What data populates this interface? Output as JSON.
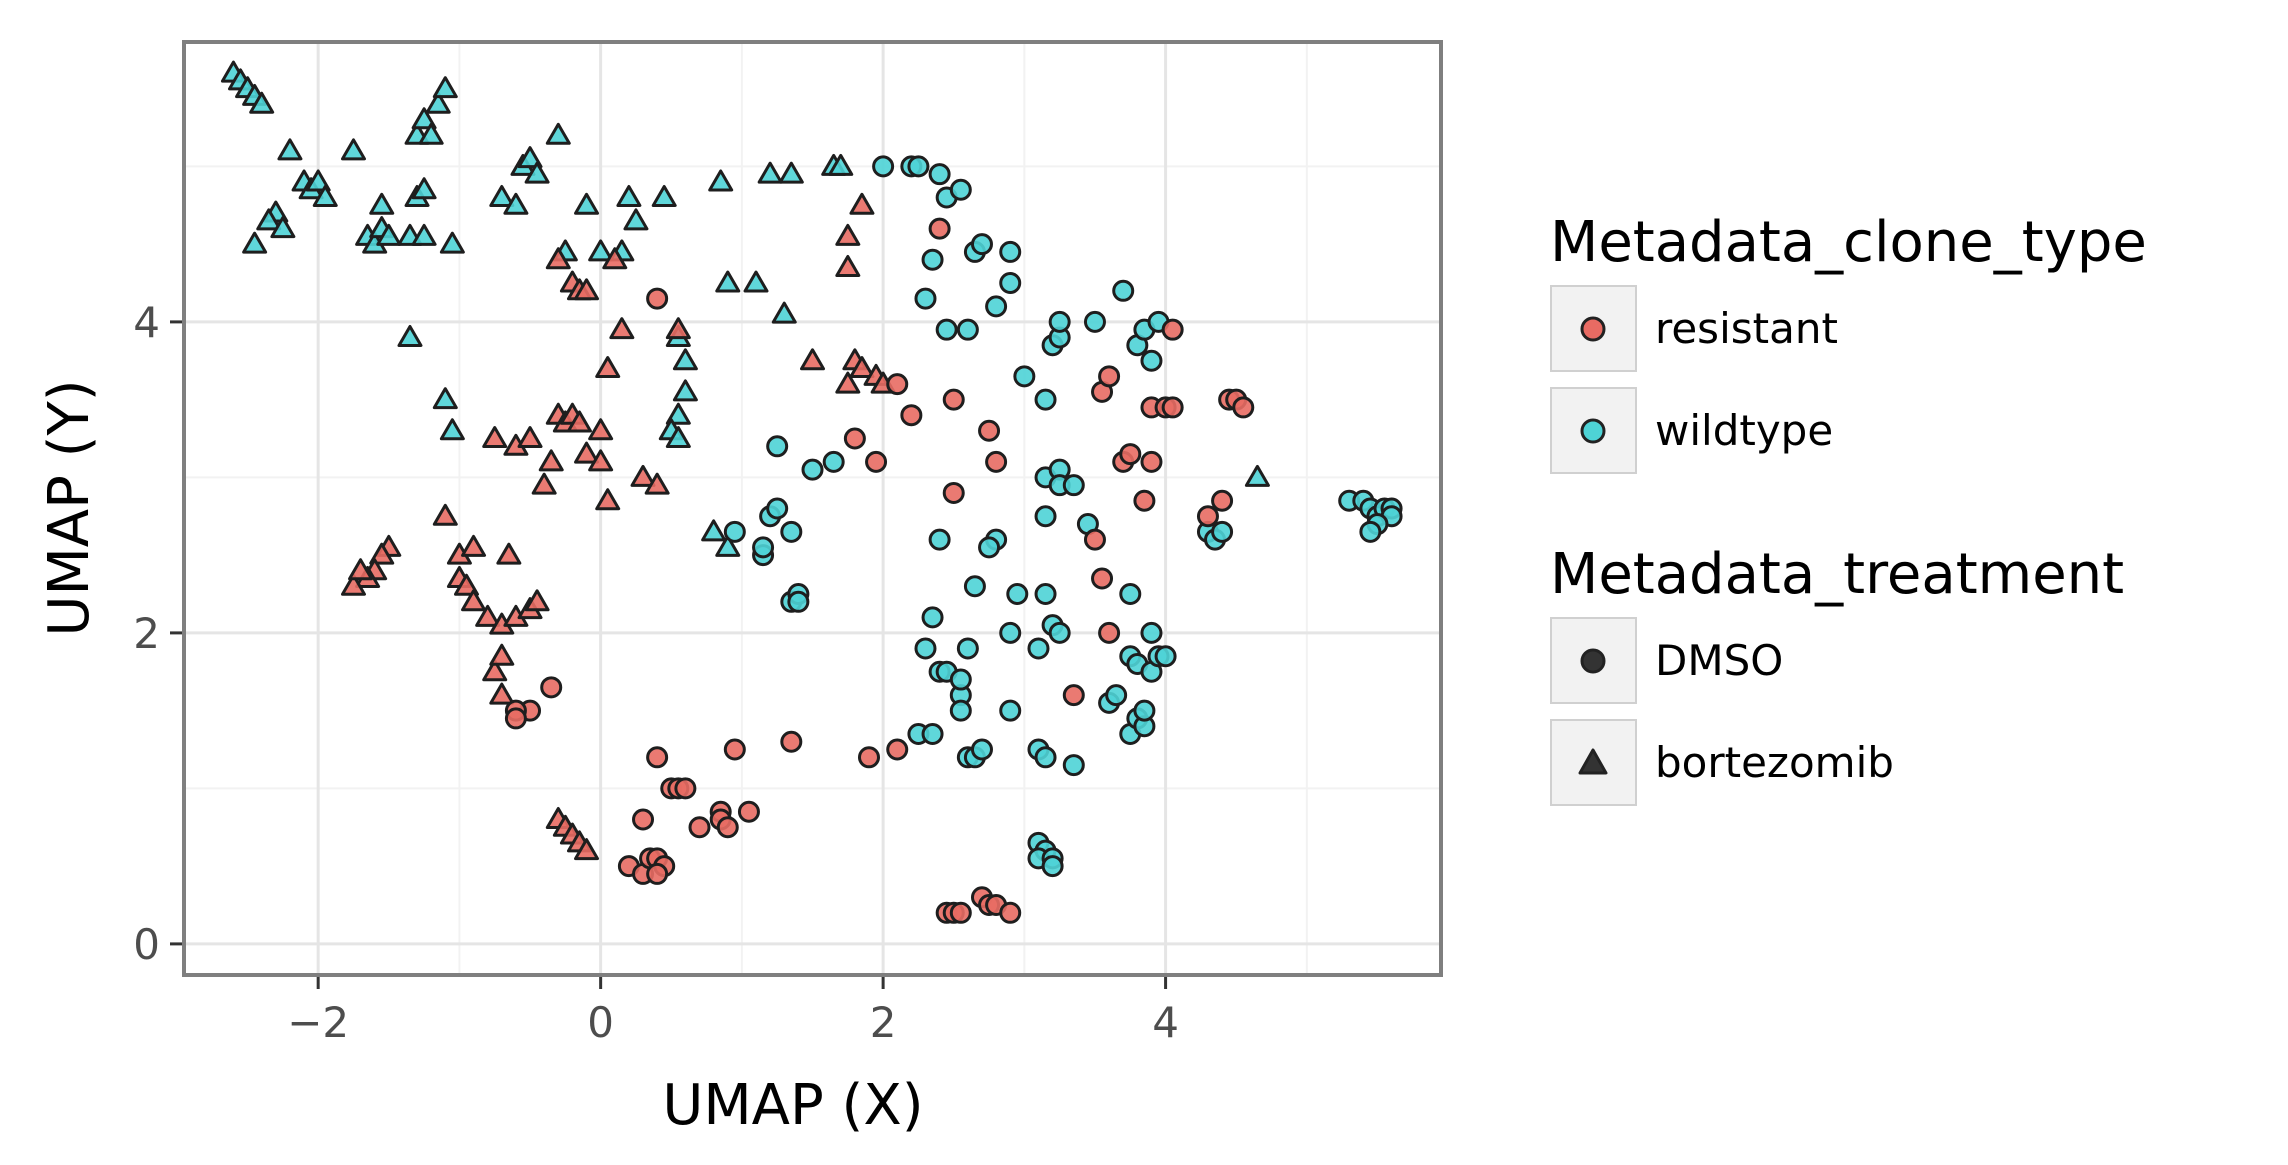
{
  "chart_data": {
    "type": "scatter",
    "title": "",
    "xlabel": "UMAP (X)",
    "ylabel": "UMAP (Y)",
    "xlim": [
      -2.95,
      5.95
    ],
    "ylim": [
      -0.2,
      5.8
    ],
    "x_ticks": [
      -2,
      0,
      2,
      4
    ],
    "x_tick_labels": [
      "−2",
      "0",
      "2",
      "4"
    ],
    "y_ticks": [
      0,
      2,
      4
    ],
    "y_tick_labels": [
      "0",
      "2",
      "4"
    ],
    "grid": true,
    "legend_position": "right",
    "colors": {
      "resistant": "#e86b63",
      "wildtype": "#4ed3d6"
    },
    "legends": [
      {
        "title": "Metadata_clone_type",
        "entries": [
          {
            "label": "resistant",
            "key": "resistant",
            "kind": "color"
          },
          {
            "label": "wildtype",
            "key": "wildtype",
            "kind": "color"
          }
        ]
      },
      {
        "title": "Metadata_treatment",
        "entries": [
          {
            "label": "DMSO",
            "key": "DMSO",
            "kind": "shape"
          },
          {
            "label": "bortezomib",
            "key": "bortezomib",
            "kind": "shape"
          }
        ]
      }
    ],
    "series": [
      {
        "clone_type": "wildtype",
        "treatment": "bortezomib",
        "points": [
          [
            -2.6,
            5.6
          ],
          [
            -2.55,
            5.55
          ],
          [
            -2.5,
            5.5
          ],
          [
            -2.45,
            5.45
          ],
          [
            -2.4,
            5.4
          ],
          [
            -2.2,
            5.1
          ],
          [
            -2.1,
            4.9
          ],
          [
            -2.05,
            4.85
          ],
          [
            -2.0,
            4.9
          ],
          [
            -1.95,
            4.8
          ],
          [
            -1.75,
            5.1
          ],
          [
            -2.3,
            4.7
          ],
          [
            -2.35,
            4.65
          ],
          [
            -2.25,
            4.6
          ],
          [
            -2.45,
            4.5
          ],
          [
            -1.65,
            4.55
          ],
          [
            -1.6,
            4.5
          ],
          [
            -1.55,
            4.6
          ],
          [
            -1.5,
            4.55
          ],
          [
            -1.55,
            4.75
          ],
          [
            -1.35,
            4.55
          ],
          [
            -1.25,
            4.55
          ],
          [
            -1.3,
            4.8
          ],
          [
            -1.25,
            4.85
          ],
          [
            -1.3,
            5.2
          ],
          [
            -1.25,
            5.3
          ],
          [
            -1.2,
            5.2
          ],
          [
            -1.15,
            5.4
          ],
          [
            -1.1,
            5.5
          ],
          [
            -1.05,
            4.5
          ],
          [
            -1.35,
            3.9
          ],
          [
            -1.1,
            3.5
          ],
          [
            -1.05,
            3.3
          ],
          [
            -0.7,
            4.8
          ],
          [
            -0.6,
            4.75
          ],
          [
            -0.55,
            5.0
          ],
          [
            -0.5,
            5.05
          ],
          [
            -0.45,
            4.95
          ],
          [
            -0.3,
            5.2
          ],
          [
            -0.25,
            4.45
          ],
          [
            -0.1,
            4.75
          ],
          [
            0.0,
            4.45
          ],
          [
            0.15,
            4.45
          ],
          [
            0.2,
            4.8
          ],
          [
            0.25,
            4.65
          ],
          [
            0.45,
            4.8
          ],
          [
            0.55,
            3.9
          ],
          [
            0.6,
            3.75
          ],
          [
            0.6,
            3.55
          ],
          [
            0.55,
            3.4
          ],
          [
            0.5,
            3.3
          ],
          [
            0.55,
            3.25
          ],
          [
            0.85,
            4.9
          ],
          [
            0.9,
            4.25
          ],
          [
            1.1,
            4.25
          ],
          [
            1.2,
            4.95
          ],
          [
            1.35,
            4.95
          ],
          [
            1.3,
            4.05
          ],
          [
            1.65,
            5.0
          ],
          [
            1.7,
            5.0
          ],
          [
            0.8,
            2.65
          ],
          [
            0.9,
            2.55
          ],
          [
            4.65,
            3.0
          ]
        ]
      },
      {
        "clone_type": "resistant",
        "treatment": "bortezomib",
        "points": [
          [
            -0.3,
            4.4
          ],
          [
            -0.2,
            4.25
          ],
          [
            -0.15,
            4.2
          ],
          [
            -0.1,
            4.2
          ],
          [
            0.1,
            4.4
          ],
          [
            0.15,
            3.95
          ],
          [
            0.05,
            3.7
          ],
          [
            0.55,
            3.95
          ],
          [
            -0.75,
            3.25
          ],
          [
            -0.6,
            3.2
          ],
          [
            -0.5,
            3.25
          ],
          [
            -0.35,
            3.1
          ],
          [
            -0.3,
            3.4
          ],
          [
            -0.25,
            3.35
          ],
          [
            -0.2,
            3.4
          ],
          [
            -0.15,
            3.35
          ],
          [
            -0.1,
            3.15
          ],
          [
            0.0,
            3.1
          ],
          [
            0.0,
            3.3
          ],
          [
            0.05,
            2.85
          ],
          [
            0.3,
            3.0
          ],
          [
            0.4,
            2.95
          ],
          [
            -0.4,
            2.95
          ],
          [
            -1.1,
            2.75
          ],
          [
            -1.0,
            2.5
          ],
          [
            -0.9,
            2.55
          ],
          [
            -0.65,
            2.5
          ],
          [
            -1.5,
            2.55
          ],
          [
            -1.55,
            2.5
          ],
          [
            -1.6,
            2.4
          ],
          [
            -1.65,
            2.35
          ],
          [
            -1.75,
            2.3
          ],
          [
            -1.7,
            2.4
          ],
          [
            -1.0,
            2.35
          ],
          [
            -0.95,
            2.3
          ],
          [
            -0.9,
            2.2
          ],
          [
            -0.8,
            2.1
          ],
          [
            -0.7,
            2.05
          ],
          [
            -0.6,
            2.1
          ],
          [
            -0.5,
            2.15
          ],
          [
            -0.45,
            2.2
          ],
          [
            -0.75,
            1.75
          ],
          [
            -0.7,
            1.85
          ],
          [
            -0.7,
            1.6
          ],
          [
            -0.3,
            0.8
          ],
          [
            -0.25,
            0.75
          ],
          [
            -0.2,
            0.7
          ],
          [
            -0.15,
            0.65
          ],
          [
            -0.1,
            0.6
          ],
          [
            1.5,
            3.75
          ],
          [
            1.75,
            3.6
          ],
          [
            1.8,
            3.75
          ],
          [
            1.85,
            3.7
          ],
          [
            1.95,
            3.65
          ],
          [
            2.0,
            3.6
          ],
          [
            1.75,
            4.35
          ],
          [
            1.75,
            4.55
          ],
          [
            1.85,
            4.75
          ]
        ]
      },
      {
        "clone_type": "wildtype",
        "treatment": "DMSO",
        "points": [
          [
            2.0,
            5.0
          ],
          [
            2.2,
            5.0
          ],
          [
            2.25,
            5.0
          ],
          [
            2.4,
            4.95
          ],
          [
            2.45,
            4.8
          ],
          [
            2.55,
            4.85
          ],
          [
            2.35,
            4.4
          ],
          [
            2.3,
            4.15
          ],
          [
            2.45,
            3.95
          ],
          [
            2.6,
            3.95
          ],
          [
            2.65,
            4.45
          ],
          [
            2.7,
            4.5
          ],
          [
            2.8,
            4.1
          ],
          [
            2.9,
            4.25
          ],
          [
            2.9,
            4.45
          ],
          [
            3.2,
            3.85
          ],
          [
            3.25,
            3.9
          ],
          [
            3.25,
            4.0
          ],
          [
            3.5,
            4.0
          ],
          [
            3.7,
            4.2
          ],
          [
            3.15,
            3.5
          ],
          [
            3.8,
            3.85
          ],
          [
            3.85,
            3.95
          ],
          [
            3.9,
            3.75
          ],
          [
            3.95,
            4.0
          ],
          [
            3.0,
            3.65
          ],
          [
            1.25,
            3.2
          ],
          [
            1.5,
            3.05
          ],
          [
            1.65,
            3.1
          ],
          [
            1.2,
            2.75
          ],
          [
            1.25,
            2.8
          ],
          [
            1.35,
            2.65
          ],
          [
            1.15,
            2.5
          ],
          [
            1.15,
            2.55
          ],
          [
            1.35,
            2.2
          ],
          [
            1.4,
            2.25
          ],
          [
            1.4,
            2.2
          ],
          [
            0.95,
            2.65
          ],
          [
            2.4,
            2.6
          ],
          [
            2.65,
            2.3
          ],
          [
            2.8,
            2.6
          ],
          [
            2.75,
            2.55
          ],
          [
            2.95,
            2.25
          ],
          [
            3.15,
            2.25
          ],
          [
            3.15,
            3.0
          ],
          [
            3.25,
            3.05
          ],
          [
            3.25,
            2.95
          ],
          [
            3.35,
            2.95
          ],
          [
            3.15,
            2.75
          ],
          [
            3.45,
            2.7
          ],
          [
            3.75,
            2.25
          ],
          [
            2.3,
            1.9
          ],
          [
            2.35,
            2.1
          ],
          [
            2.6,
            1.9
          ],
          [
            2.4,
            1.75
          ],
          [
            2.45,
            1.75
          ],
          [
            2.55,
            1.6
          ],
          [
            2.55,
            1.7
          ],
          [
            2.55,
            1.5
          ],
          [
            2.9,
            2.0
          ],
          [
            2.9,
            1.5
          ],
          [
            3.1,
            1.9
          ],
          [
            3.2,
            2.05
          ],
          [
            3.25,
            2.0
          ],
          [
            3.75,
            1.85
          ],
          [
            3.8,
            1.8
          ],
          [
            3.9,
            1.75
          ],
          [
            3.9,
            2.0
          ],
          [
            3.95,
            1.85
          ],
          [
            4.0,
            1.85
          ],
          [
            3.6,
            1.55
          ],
          [
            3.65,
            1.6
          ],
          [
            3.75,
            1.35
          ],
          [
            3.8,
            1.45
          ],
          [
            3.85,
            1.4
          ],
          [
            3.85,
            1.5
          ],
          [
            2.25,
            1.35
          ],
          [
            2.35,
            1.35
          ],
          [
            2.6,
            1.2
          ],
          [
            2.65,
            1.2
          ],
          [
            2.7,
            1.25
          ],
          [
            3.1,
            1.25
          ],
          [
            3.15,
            1.2
          ],
          [
            3.35,
            1.15
          ],
          [
            3.1,
            0.65
          ],
          [
            3.15,
            0.6
          ],
          [
            3.1,
            0.55
          ],
          [
            3.2,
            0.55
          ],
          [
            3.2,
            0.5
          ],
          [
            4.3,
            2.65
          ],
          [
            4.35,
            2.6
          ],
          [
            4.4,
            2.65
          ],
          [
            5.3,
            2.85
          ],
          [
            5.4,
            2.85
          ],
          [
            5.45,
            2.8
          ],
          [
            5.5,
            2.75
          ],
          [
            5.55,
            2.8
          ],
          [
            5.6,
            2.8
          ],
          [
            5.6,
            2.75
          ],
          [
            5.5,
            2.7
          ],
          [
            5.45,
            2.65
          ]
        ]
      },
      {
        "clone_type": "resistant",
        "treatment": "DMSO",
        "points": [
          [
            0.4,
            4.15
          ],
          [
            2.1,
            3.6
          ],
          [
            2.2,
            3.4
          ],
          [
            2.5,
            3.5
          ],
          [
            2.4,
            4.6
          ],
          [
            1.8,
            3.25
          ],
          [
            1.95,
            3.1
          ],
          [
            2.5,
            2.9
          ],
          [
            2.75,
            3.3
          ],
          [
            2.8,
            3.1
          ],
          [
            3.55,
            3.55
          ],
          [
            3.6,
            3.65
          ],
          [
            3.7,
            3.1
          ],
          [
            3.75,
            3.15
          ],
          [
            3.9,
            3.1
          ],
          [
            3.85,
            2.85
          ],
          [
            3.9,
            3.45
          ],
          [
            4.0,
            3.45
          ],
          [
            4.05,
            3.45
          ],
          [
            4.05,
            3.95
          ],
          [
            4.3,
            2.75
          ],
          [
            4.4,
            2.85
          ],
          [
            4.45,
            3.5
          ],
          [
            4.5,
            3.5
          ],
          [
            4.55,
            3.45
          ],
          [
            3.5,
            2.6
          ],
          [
            3.55,
            2.35
          ],
          [
            3.6,
            2.0
          ],
          [
            3.35,
            1.6
          ],
          [
            -0.35,
            1.65
          ],
          [
            -0.5,
            1.5
          ],
          [
            -0.6,
            1.5
          ],
          [
            -0.6,
            1.45
          ],
          [
            0.4,
            1.2
          ],
          [
            0.95,
            1.25
          ],
          [
            1.35,
            1.3
          ],
          [
            1.9,
            1.2
          ],
          [
            2.1,
            1.25
          ],
          [
            0.5,
            1.0
          ],
          [
            0.55,
            1.0
          ],
          [
            0.6,
            1.0
          ],
          [
            0.85,
            0.85
          ],
          [
            0.85,
            0.8
          ],
          [
            0.7,
            0.75
          ],
          [
            0.9,
            0.75
          ],
          [
            1.05,
            0.85
          ],
          [
            0.3,
            0.8
          ],
          [
            0.2,
            0.5
          ],
          [
            0.3,
            0.45
          ],
          [
            0.35,
            0.55
          ],
          [
            0.4,
            0.55
          ],
          [
            0.45,
            0.5
          ],
          [
            0.4,
            0.45
          ],
          [
            2.45,
            0.2
          ],
          [
            2.5,
            0.2
          ],
          [
            2.55,
            0.2
          ],
          [
            2.7,
            0.3
          ],
          [
            2.75,
            0.25
          ],
          [
            2.8,
            0.25
          ],
          [
            2.9,
            0.2
          ]
        ]
      }
    ]
  }
}
